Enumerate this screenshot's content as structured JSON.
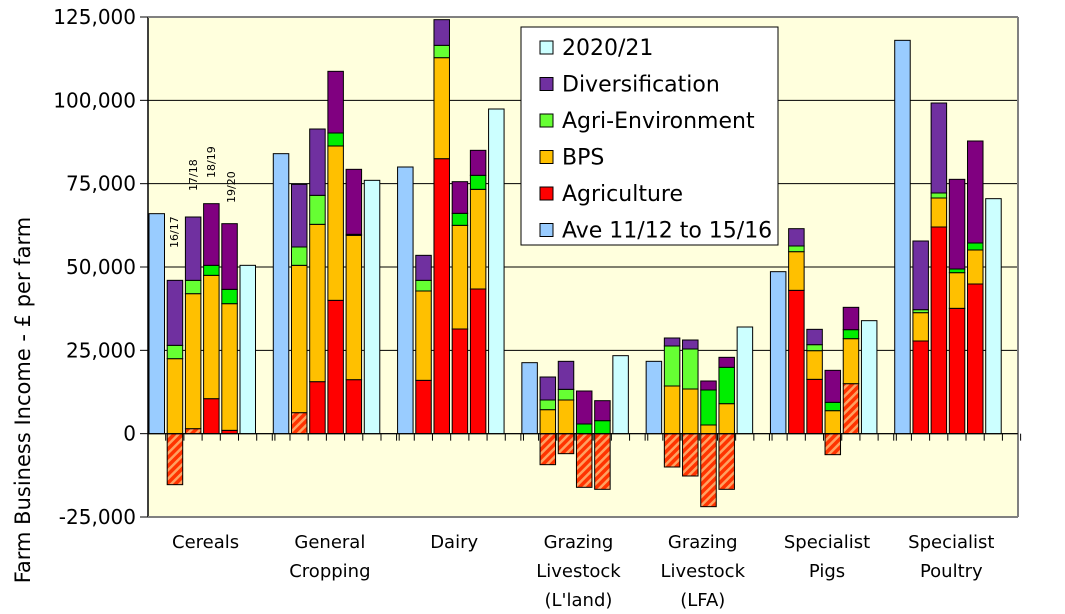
{
  "chart_data": {
    "type": "bar",
    "stacked": true,
    "title": "",
    "xlabel": "",
    "ylabel": "Farm Business Income - £ per farm",
    "ylim": [
      -25000,
      125000
    ],
    "yticks": [
      -25000,
      0,
      25000,
      50000,
      75000,
      100000,
      125000
    ],
    "ytick_labels": [
      "-25,000",
      "0",
      "25,000",
      "50,000",
      "75,000",
      "100,000",
      "125,000"
    ],
    "grid": true,
    "legend_position": "top-center",
    "categories": [
      [
        "Cereals"
      ],
      [
        "General",
        "Cropping"
      ],
      [
        "Dairy"
      ],
      [
        "Grazing",
        "Livestock",
        "(L'land)"
      ],
      [
        "Grazing",
        "Livestock",
        "(LFA)"
      ],
      [
        "Specialist",
        "Pigs"
      ],
      [
        "Specialist",
        "Poultry"
      ]
    ],
    "year_labels": [
      "16/17",
      "17/18",
      "18/19",
      "19/20"
    ],
    "legend": [
      {
        "key": "y2020",
        "label": "2020/21",
        "color": "#CCFFFF"
      },
      {
        "key": "diversification",
        "label": "Diversification",
        "color": "#7030A0"
      },
      {
        "key": "agri_env",
        "label": "Agri-Environment",
        "color": "#66FF33"
      },
      {
        "key": "bps",
        "label": "BPS",
        "color": "#FFC000"
      },
      {
        "key": "agriculture",
        "label": "Agriculture",
        "color": "#FF0000"
      },
      {
        "key": "ave",
        "label": "Ave 11/12 to 15/16",
        "color": "#99CCFF"
      }
    ],
    "colors": {
      "ave": "#99CCFF",
      "y2020": "#CCFFFF",
      "agriculture": "#FF0000",
      "agriculture_hatch": "#FF3300",
      "bps": "#FFC000",
      "agri_env_a": "#66FF33",
      "agri_env_b": "#00EE00",
      "div_a": "#7030A0",
      "div_b": "#800080",
      "plot_bg": "#FFFFDD"
    },
    "groups": [
      {
        "name": "Cereals",
        "ave": 66000,
        "y2020": 50500,
        "years": [
          {
            "year": "16/17",
            "agriculture": -15300,
            "bps": 22500,
            "agri_env": 4000,
            "diversification": 19500
          },
          {
            "year": "17/18",
            "agriculture": 1500,
            "agriculture_hatched": true,
            "bps": 40500,
            "agri_env": 4000,
            "diversification": 19000
          },
          {
            "year": "18/19",
            "agriculture": 10500,
            "bps": 37000,
            "agri_env": 3000,
            "diversification": 18500
          },
          {
            "year": "19/20",
            "agriculture": 1000,
            "bps": 38000,
            "agri_env": 4300,
            "diversification": 19700
          }
        ]
      },
      {
        "name": "General Cropping",
        "ave": 84000,
        "y2020": 76000,
        "years": [
          {
            "year": "16/17",
            "agriculture": 6300,
            "agriculture_hatched": true,
            "bps": 44200,
            "agri_env": 5500,
            "diversification": 18800
          },
          {
            "year": "17/18",
            "agriculture": 15600,
            "bps": 47200,
            "agri_env": 8700,
            "diversification": 19900
          },
          {
            "year": "18/19",
            "agriculture": 40000,
            "bps": 46300,
            "agri_env": 3900,
            "diversification": 18500
          },
          {
            "year": "19/20",
            "agriculture": 16200,
            "bps": 43300,
            "agri_env": 300,
            "diversification": 19500
          }
        ]
      },
      {
        "name": "Dairy",
        "ave": 80000,
        "y2020": 97400,
        "years": [
          {
            "year": "16/17",
            "agriculture": 16000,
            "bps": 26800,
            "agri_env": 3200,
            "diversification": 7500
          },
          {
            "year": "17/18",
            "agriculture": 82500,
            "bps": 30300,
            "agri_env": 3700,
            "diversification": 7700
          },
          {
            "year": "18/19",
            "agriculture": 31400,
            "bps": 31100,
            "agri_env": 3600,
            "diversification": 9500
          },
          {
            "year": "19/20",
            "agriculture": 43400,
            "bps": 29900,
            "agri_env": 4200,
            "diversification": 7500
          }
        ]
      },
      {
        "name": "Grazing Livestock (L'land)",
        "ave": 21300,
        "y2020": 23400,
        "years": [
          {
            "year": "16/17",
            "agriculture": -9300,
            "bps": 7200,
            "agri_env": 2900,
            "diversification": 6900
          },
          {
            "year": "17/18",
            "agriculture": -6000,
            "bps": 10100,
            "agri_env": 3200,
            "diversification": 8400
          },
          {
            "year": "18/19",
            "agriculture": -16100,
            "bps": 0,
            "agri_env": 2900,
            "diversification": 9900
          },
          {
            "year": "19/20",
            "agriculture": -16700,
            "bps": 0,
            "agri_env": 3900,
            "diversification": 6000
          }
        ]
      },
      {
        "name": "Grazing Livestock (LFA)",
        "ave": 21700,
        "y2020": 32000,
        "years": [
          {
            "year": "16/17",
            "agriculture": -10000,
            "bps": 14300,
            "agri_env": 12000,
            "diversification": 2400
          },
          {
            "year": "17/18",
            "agriculture": -12700,
            "bps": 13400,
            "agri_env": 12000,
            "diversification": 2700
          },
          {
            "year": "18/19",
            "agriculture": -21900,
            "bps": 2600,
            "agri_env": 10500,
            "diversification": 2700
          },
          {
            "year": "19/20",
            "agriculture": -16700,
            "bps": 9000,
            "agri_env": 10900,
            "diversification": 3000
          }
        ]
      },
      {
        "name": "Specialist Pigs",
        "ave": 48600,
        "y2020": 33900,
        "years": [
          {
            "year": "16/17",
            "agriculture": 43000,
            "bps": 11600,
            "agri_env": 1700,
            "diversification": 5200
          },
          {
            "year": "17/18",
            "agriculture": 16300,
            "bps": 8600,
            "agri_env": 1800,
            "diversification": 4600
          },
          {
            "year": "18/19",
            "agriculture": -6300,
            "bps": 6900,
            "agri_env": 2500,
            "diversification": 9600
          },
          {
            "year": "19/20",
            "agriculture": 15000,
            "agriculture_hatched": true,
            "bps": 13500,
            "agri_env": 2700,
            "diversification": 6700
          }
        ]
      },
      {
        "name": "Specialist Poultry",
        "ave": 118000,
        "y2020": 70500,
        "years": [
          {
            "year": "16/17",
            "agriculture": 27800,
            "bps": 8500,
            "agri_env": 900,
            "diversification": 20600
          },
          {
            "year": "17/18",
            "agriculture": 62000,
            "bps": 8700,
            "agri_env": 1500,
            "diversification": 27000
          },
          {
            "year": "18/19",
            "agriculture": 37600,
            "bps": 10700,
            "agri_env": 1100,
            "diversification": 26900
          },
          {
            "year": "19/20",
            "agriculture": 44900,
            "bps": 10200,
            "agri_env": 2100,
            "diversification": 30600
          }
        ]
      }
    ]
  }
}
